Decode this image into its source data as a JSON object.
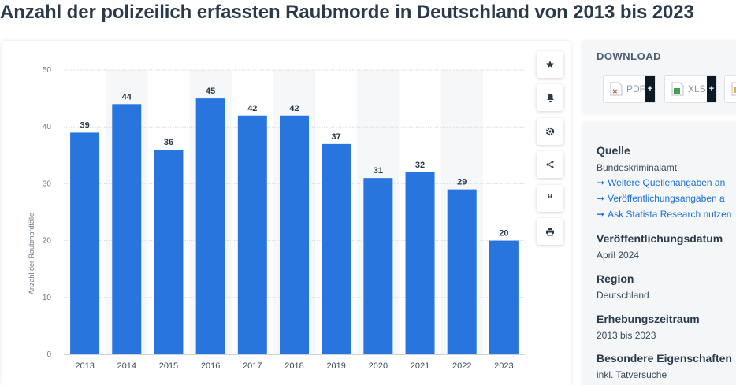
{
  "title": "Anzahl der polizeilich erfassten Raubmorde in Deutschland von 2013 bis 2023",
  "chart_data": {
    "type": "bar",
    "categories": [
      "2013",
      "2014",
      "2015",
      "2016",
      "2017",
      "2018",
      "2019",
      "2020",
      "2021",
      "2022",
      "2023"
    ],
    "values": [
      39,
      44,
      36,
      45,
      42,
      42,
      37,
      31,
      32,
      29,
      20
    ],
    "ylabel": "Anzahl der Raubmordfälle",
    "xlabel": "",
    "ylim": [
      0,
      50
    ],
    "yticks": [
      0,
      10,
      20,
      30,
      40,
      50
    ],
    "grid": true,
    "bar_color": "#2876dd",
    "band_color": "#f6f7f9"
  },
  "toolbar": {
    "buttons": [
      {
        "name": "star-icon",
        "glyph": "★"
      },
      {
        "name": "bell-icon",
        "glyph": "bell"
      },
      {
        "name": "gear-icon",
        "glyph": "⚙"
      },
      {
        "name": "share-icon",
        "glyph": "share"
      },
      {
        "name": "quote-icon",
        "glyph": "❝"
      },
      {
        "name": "print-icon",
        "glyph": "print"
      }
    ]
  },
  "download": {
    "title": "DOWNLOAD",
    "pdf_label": "PDF",
    "xls_label": "XLS",
    "plus": "+"
  },
  "info": {
    "source_heading": "Quelle",
    "source_value": "Bundeskriminalamt",
    "links": [
      "Weitere Quellenangaben an",
      "Veröffentlichungsangaben a",
      "Ask Statista Research nutzen"
    ],
    "link_arrow": "➞",
    "pub_heading": "Veröffentlichungsdatum",
    "pub_value": "April 2024",
    "region_heading": "Region",
    "region_value": "Deutschland",
    "period_heading": "Erhebungszeitraum",
    "period_value": "2013 bis 2023",
    "special_heading": "Besondere Eigenschaften",
    "special_value": "inkl. Tatversuche"
  },
  "colors": {
    "accent": "#1a6fd8",
    "text": "#2b3a4a",
    "panel_bg": "#f4f6f8"
  }
}
